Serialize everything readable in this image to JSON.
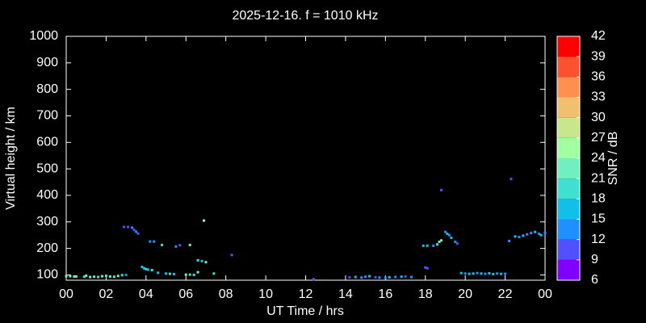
{
  "chart_data": {
    "type": "scatter",
    "title": "2025-12-16. f = 1010 kHz",
    "xlabel": "UT Time / hrs",
    "ylabel": "Virtual height / km",
    "colorbar_label": "SNR / dB",
    "xlim": [
      0,
      24
    ],
    "xticks": [
      {
        "value": 0,
        "label": "00"
      },
      {
        "value": 2,
        "label": "02"
      },
      {
        "value": 4,
        "label": "04"
      },
      {
        "value": 6,
        "label": "06"
      },
      {
        "value": 8,
        "label": "08"
      },
      10,
      12,
      14,
      16,
      18,
      20,
      22,
      {
        "value": 24,
        "label": "00"
      }
    ],
    "ylim": [
      80,
      1000
    ],
    "yticks": [
      100,
      200,
      300,
      400,
      500,
      600,
      700,
      800,
      900,
      1000
    ],
    "clim": [
      6,
      42
    ],
    "cticks": [
      6,
      9,
      12,
      15,
      18,
      21,
      24,
      27,
      30,
      33,
      36,
      39,
      42
    ],
    "colormap": [
      "#8000ff",
      "#5050ff",
      "#2090ff",
      "#10c0e8",
      "#40e0d0",
      "#70f0c0",
      "#a0ffa0",
      "#c8e68c",
      "#f0c070",
      "#ff9050",
      "#ff5030",
      "#ff0000"
    ],
    "x": [
      0.0,
      0.2,
      0.4,
      0.5,
      0.9,
      1.0,
      1.2,
      1.4,
      1.6,
      1.8,
      2.0,
      2.2,
      2.4,
      2.6,
      2.8,
      3.0,
      2.9,
      3.1,
      3.3,
      3.4,
      3.5,
      3.6,
      3.8,
      3.9,
      4.0,
      4.1,
      4.3,
      4.2,
      4.4,
      4.6,
      4.8,
      5.0,
      5.2,
      5.4,
      5.5,
      5.7,
      6.0,
      6.2,
      6.2,
      6.4,
      6.6,
      6.6,
      6.8,
      7.0,
      6.9,
      7.4,
      8.3,
      12.4,
      14.2,
      14.5,
      14.8,
      15.0,
      15.2,
      15.5,
      15.7,
      16.0,
      16.2,
      16.5,
      16.8,
      17.0,
      17.3,
      17.9,
      18.1,
      18.0,
      18.1,
      18.4,
      18.6,
      18.7,
      18.8,
      18.8,
      19.0,
      19.1,
      19.2,
      19.3,
      19.5,
      19.6,
      19.8,
      20.0,
      20.2,
      20.4,
      20.6,
      20.8,
      21.0,
      21.2,
      21.4,
      21.6,
      21.8,
      22.0,
      22.2,
      22.3,
      22.5,
      22.7,
      22.9,
      23.1,
      23.3,
      23.5,
      23.7,
      23.8,
      24.0
    ],
    "y": [
      95,
      95,
      94,
      94,
      93,
      97,
      92,
      93,
      92,
      95,
      97,
      94,
      93,
      96,
      99,
      100,
      281,
      281,
      278,
      270,
      263,
      256,
      130,
      125,
      122,
      120,
      118,
      226,
      226,
      108,
      213,
      105,
      104,
      103,
      207,
      212,
      101,
      101,
      213,
      100,
      110,
      155,
      152,
      148,
      305,
      105,
      175,
      84,
      91,
      92,
      90,
      93,
      95,
      91,
      90,
      89,
      91,
      92,
      93,
      94,
      92,
      210,
      210,
      128,
      125,
      210,
      215,
      225,
      230,
      420,
      262,
      255,
      250,
      240,
      225,
      218,
      107,
      105,
      104,
      105,
      107,
      105,
      104,
      106,
      103,
      105,
      104,
      104,
      228,
      462,
      245,
      243,
      248,
      253,
      258,
      262,
      255,
      250,
      258
    ],
    "snr": [
      22,
      22,
      22,
      22,
      19,
      22,
      22,
      22,
      19,
      22,
      19,
      22,
      22,
      22,
      19,
      13,
      10,
      10,
      13,
      10,
      13,
      10,
      16,
      16,
      19,
      16,
      19,
      13,
      13,
      16,
      19,
      16,
      19,
      16,
      13,
      10,
      22,
      19,
      22,
      19,
      22,
      19,
      16,
      22,
      25,
      19,
      10,
      10,
      10,
      16,
      13,
      13,
      16,
      10,
      13,
      13,
      16,
      13,
      16,
      10,
      13,
      16,
      16,
      10,
      10,
      13,
      19,
      22,
      22,
      10,
      13,
      16,
      13,
      16,
      13,
      10,
      16,
      13,
      16,
      16,
      13,
      16,
      13,
      16,
      16,
      13,
      16,
      13,
      13,
      10,
      16,
      13,
      16,
      13,
      13,
      16,
      13,
      16,
      13
    ]
  }
}
